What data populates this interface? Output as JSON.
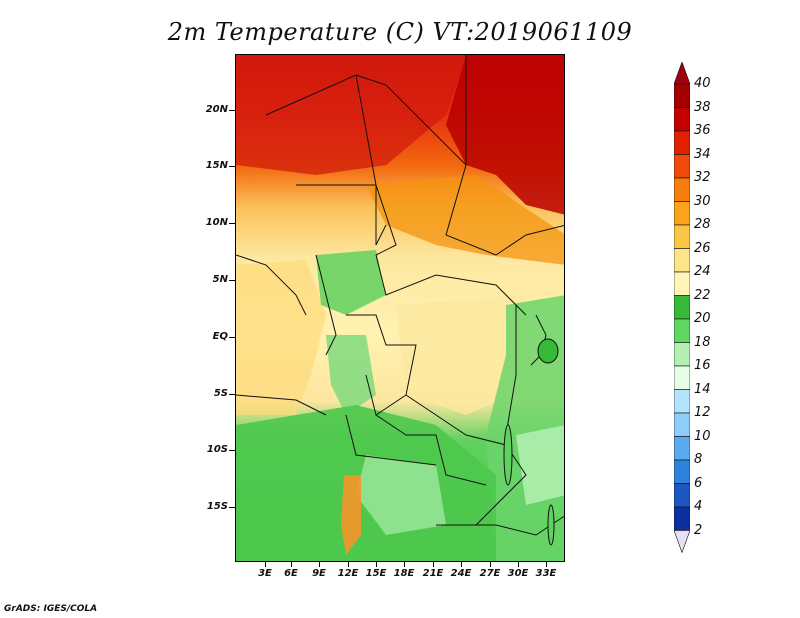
{
  "title": "2m Temperature (C)  VT:2019061109",
  "footer": "GrADS: IGES/COLA",
  "y_axis_labels": [
    "20N",
    "15N",
    "10N",
    "5N",
    "EQ",
    "5S",
    "10S",
    "15S"
  ],
  "x_axis_labels": [
    "3E",
    "6E",
    "9E",
    "12E",
    "15E",
    "18E",
    "21E",
    "24E",
    "27E",
    "30E",
    "33E"
  ],
  "colorbar": {
    "labels": [
      "40",
      "38",
      "36",
      "34",
      "32",
      "30",
      "28",
      "26",
      "24",
      "22",
      "20",
      "18",
      "16",
      "14",
      "12",
      "10",
      "8",
      "6",
      "4",
      "2"
    ],
    "colors": [
      "#a50000",
      "#c40000",
      "#e02000",
      "#f04a0a",
      "#f57e0c",
      "#f9a41a",
      "#fbc648",
      "#fde389",
      "#fff5b8",
      "#36b936",
      "#5fd65f",
      "#b4f0b4",
      "#e6fde6",
      "#b4e4fd",
      "#8ccdfb",
      "#5aaaf0",
      "#2f82dc",
      "#1a57c2",
      "#0c2fa0",
      "#0a0a70"
    ],
    "over_color": "#a00010",
    "under_color": "#e6e0f5"
  }
}
